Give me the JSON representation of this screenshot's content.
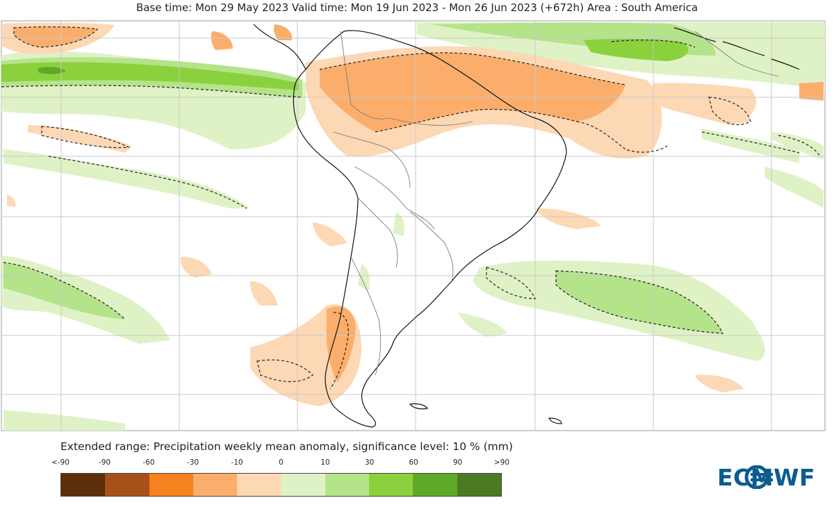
{
  "title": "Base time: Mon 29 May 2023 Valid time: Mon 19 Jun 2023 - Mon 26 Jun 2023 (+672h) Area : South America",
  "legend": {
    "title": "Extended range: Precipitation weekly mean anomaly, significance level: 10 % (mm)",
    "tick_labels": [
      "<-90",
      "-90",
      "-60",
      "-30",
      "-10",
      "0",
      "10",
      "30",
      "60",
      "90",
      ">90"
    ],
    "colors": [
      "#5c2e0a",
      "#a8501a",
      "#f5821f",
      "#fbae6b",
      "#fdd8b4",
      "#dff2c6",
      "#b5e38a",
      "#8ad13d",
      "#5fa82a",
      "#4b7a22"
    ]
  },
  "logo": {
    "text": "ECMWF",
    "color": "#0b5c8f"
  },
  "map": {
    "colors": {
      "land_outline": "#111111",
      "border": "#7a7a7a",
      "grid": "#c8c8c8",
      "dry_light": "#fdd8b4",
      "dry_moderate": "#fbae6b",
      "wet_light": "#dff2c6",
      "wet_moderate": "#b5e38a",
      "wet_strong": "#8ad13d",
      "wet_very_strong": "#5fa82a",
      "significance": "#222222"
    }
  }
}
